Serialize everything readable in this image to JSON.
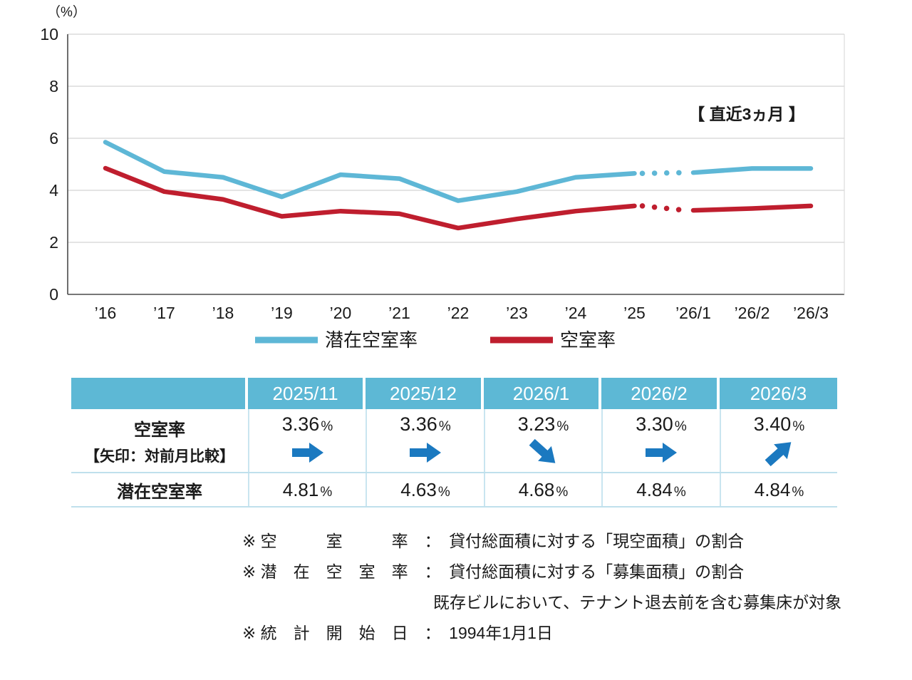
{
  "chart": {
    "y_axis_unit": "（%）",
    "y_ticks": [
      10,
      8,
      6,
      4,
      2,
      0
    ],
    "annotation": "【 直近3ヵ月 】",
    "legend": [
      {
        "label": "潜在空室率",
        "color": "#5eb7d6"
      },
      {
        "label": "空室率",
        "color": "#bf1e2e"
      }
    ]
  },
  "chart_data": {
    "type": "line",
    "x": [
      "’16",
      "’17",
      "’18",
      "’19",
      "’20",
      "’21",
      "’22",
      "’23",
      "’24",
      "’25",
      "’26/1",
      "’26/2",
      "’26/3"
    ],
    "series": [
      {
        "name": "潜在空室率",
        "color": "#5eb7d6",
        "values": [
          5.85,
          4.72,
          4.5,
          3.75,
          4.6,
          4.45,
          3.6,
          3.95,
          4.5,
          4.65,
          4.68,
          4.84,
          4.84
        ],
        "dotted_segment": [
          9,
          10
        ]
      },
      {
        "name": "空室率",
        "color": "#bf1e2e",
        "values": [
          4.85,
          3.95,
          3.65,
          3.0,
          3.2,
          3.1,
          2.55,
          2.9,
          3.2,
          3.4,
          3.23,
          3.3,
          3.4
        ],
        "dotted_segment": [
          9,
          10
        ]
      }
    ],
    "ylim": [
      0,
      10
    ],
    "ylabel": "（%）",
    "grid": true,
    "legend_position": "bottom",
    "title": ""
  },
  "table": {
    "header": [
      "",
      "2025/11",
      "2025/12",
      "2026/1",
      "2026/2",
      "2026/3"
    ],
    "rows": [
      {
        "label": "空室率",
        "sublabel": "【矢印：対前月比較】",
        "values": [
          "3.36",
          "3.36",
          "3.23",
          "3.30",
          "3.40"
        ],
        "unit": "%",
        "arrows": [
          "flat",
          "flat",
          "down",
          "flat",
          "up"
        ]
      },
      {
        "label": "潜在空室率",
        "values": [
          "4.81",
          "4.63",
          "4.68",
          "4.84",
          "4.84"
        ],
        "unit": "%"
      }
    ],
    "arrow_color": "#1b79c0",
    "header_color": "#5db8d5"
  },
  "footnotes": [
    {
      "text": "※ 空　　　室　　　率　：　貸付総面積に対する「現空面積」の割合",
      "indent": false
    },
    {
      "text": "※ 潜　在　空　室　率　：　貸付総面積に対する「募集面積」の割合",
      "indent": false
    },
    {
      "text": "既存ビルにおいて、テナント退去前を含む募集床が対象",
      "indent": true
    },
    {
      "text": "※ 統　計　開　始　日　：　1994年1月1日",
      "indent": false
    }
  ]
}
